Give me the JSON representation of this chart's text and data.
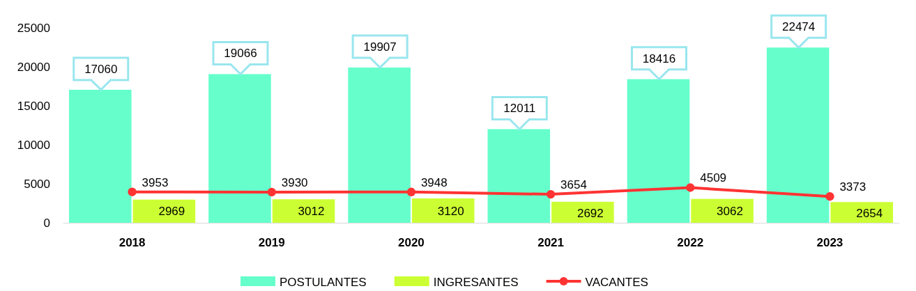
{
  "chart_data": {
    "type": "bar",
    "categories": [
      "2018",
      "2019",
      "2020",
      "2021",
      "2022",
      "2023"
    ],
    "series": [
      {
        "name": "POSTULANTES",
        "color": "#66ffcc",
        "values": [
          17060,
          19066,
          19907,
          12011,
          18416,
          22474
        ]
      },
      {
        "name": "INGRESANTES",
        "color": "#ccff33",
        "values": [
          2969,
          3012,
          3120,
          2692,
          3062,
          2654
        ]
      },
      {
        "name": "VACANTES",
        "type": "line",
        "color": "#ff3333",
        "marker": "circle",
        "values": [
          3953,
          3930,
          3948,
          3654,
          4509,
          3373
        ]
      }
    ],
    "ylim": [
      0,
      25000
    ],
    "yticks": [
      0,
      5000,
      10000,
      15000,
      20000,
      25000
    ],
    "grid": false,
    "legend": "bottom",
    "data_labels": true
  }
}
